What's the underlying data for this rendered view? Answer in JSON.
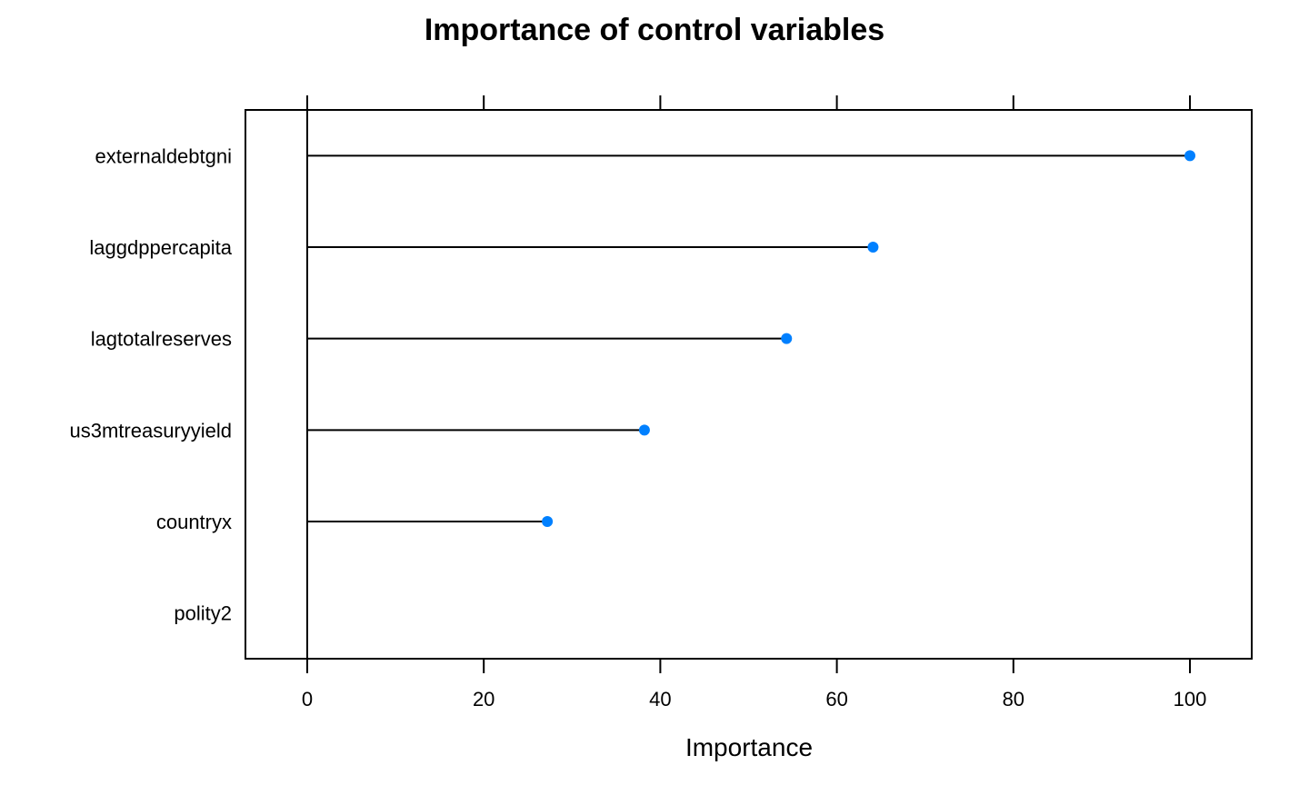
{
  "chart_data": {
    "type": "dot",
    "title": "Importance of control variables",
    "xlabel": "Importance",
    "ylabel": "",
    "categories": [
      "externaldebtgni",
      "laggdppercapita",
      "lagtotalreserves",
      "us3mtreasuryyield",
      "countryx",
      "polity2"
    ],
    "values": [
      100,
      64.1,
      54.3,
      38.2,
      27.2,
      0
    ],
    "xlim": [
      -7,
      107
    ],
    "xticks": [
      0,
      20,
      40,
      60,
      80,
      100
    ],
    "grid": false,
    "colors": {
      "point": "#0080FF",
      "line": "#000000",
      "frame": "#000000"
    }
  }
}
